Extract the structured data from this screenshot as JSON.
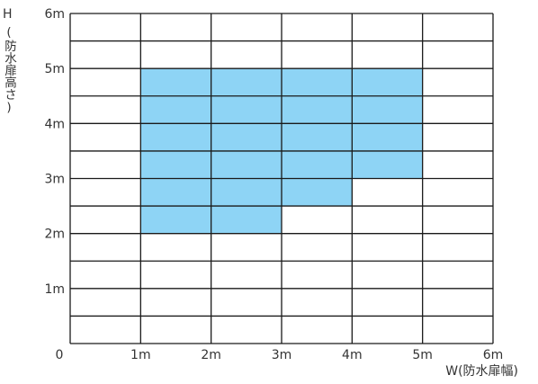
{
  "chart_data": {
    "type": "heatmap",
    "title": "",
    "x_axis": {
      "label_letter": "W",
      "label_text": "(防水扉幅)",
      "range": [
        0,
        6
      ],
      "ticks": [
        "0",
        "1m",
        "2m",
        "3m",
        "4m",
        "5m",
        "6m"
      ],
      "minor_step": 1
    },
    "y_axis": {
      "label_letter": "H",
      "label_text": "(防水扉高さ)",
      "range": [
        0,
        6
      ],
      "ticks": [
        "1m",
        "2m",
        "3m",
        "4m",
        "5m",
        "6m"
      ],
      "minor_step": 0.5
    },
    "grid": true,
    "fill_color": "#8ed4f5",
    "covered_regions": [
      {
        "x_from": 1,
        "x_to": 3,
        "y_from": 2,
        "y_to": 5
      },
      {
        "x_from": 3,
        "x_to": 4,
        "y_from": 2.5,
        "y_to": 5
      },
      {
        "x_from": 4,
        "x_to": 5,
        "y_from": 3,
        "y_to": 5
      }
    ]
  }
}
